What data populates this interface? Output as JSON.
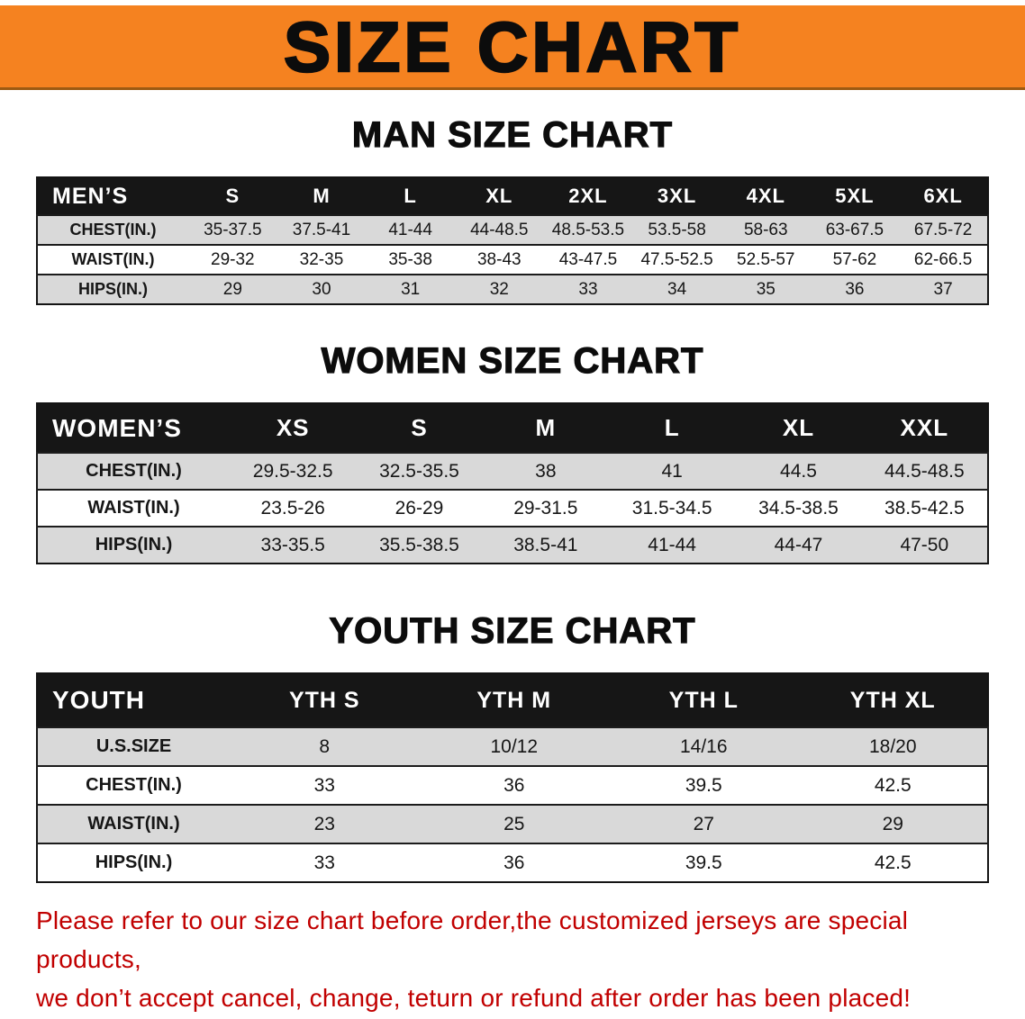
{
  "banner": {
    "title": "SIZE CHART"
  },
  "colors": {
    "banner_bg": "#f58220",
    "table_header_bg": "#161616",
    "row_alt_bg": "#d9d9d9",
    "disclaimer_color": "#c10000",
    "title_color": "#0c0c0c"
  },
  "chart_data": [
    {
      "type": "table",
      "title": "MAN SIZE CHART",
      "columns": [
        "MEN’S",
        "S",
        "M",
        "L",
        "XL",
        "2XL",
        "3XL",
        "4XL",
        "5XL",
        "6XL"
      ],
      "rows": [
        [
          "CHEST(IN.)",
          "35-37.5",
          "37.5-41",
          "41-44",
          "44-48.5",
          "48.5-53.5",
          "53.5-58",
          "58-63",
          "63-67.5",
          "67.5-72"
        ],
        [
          "WAIST(IN.)",
          "29-32",
          "32-35",
          "35-38",
          "38-43",
          "43-47.5",
          "47.5-52.5",
          "52.5-57",
          "57-62",
          "62-66.5"
        ],
        [
          "HIPS(IN.)",
          "29",
          "30",
          "31",
          "32",
          "33",
          "34",
          "35",
          "36",
          "37"
        ]
      ]
    },
    {
      "type": "table",
      "title": "WOMEN SIZE CHART",
      "columns": [
        "WOMEN’S",
        "XS",
        "S",
        "M",
        "L",
        "XL",
        "XXL"
      ],
      "rows": [
        [
          "CHEST(IN.)",
          "29.5-32.5",
          "32.5-35.5",
          "38",
          "41",
          "44.5",
          "44.5-48.5"
        ],
        [
          "WAIST(IN.)",
          "23.5-26",
          "26-29",
          "29-31.5",
          "31.5-34.5",
          "34.5-38.5",
          "38.5-42.5"
        ],
        [
          "HIPS(IN.)",
          "33-35.5",
          "35.5-38.5",
          "38.5-41",
          "41-44",
          "44-47",
          "47-50"
        ]
      ]
    },
    {
      "type": "table",
      "title": "YOUTH SIZE CHART",
      "columns": [
        "YOUTH",
        "YTH S",
        "YTH M",
        "YTH L",
        "YTH XL"
      ],
      "rows": [
        [
          "U.S.SIZE",
          "8",
          "10/12",
          "14/16",
          "18/20"
        ],
        [
          "CHEST(IN.)",
          "33",
          "36",
          "39.5",
          "42.5"
        ],
        [
          "WAIST(IN.)",
          "23",
          "25",
          "27",
          "29"
        ],
        [
          "HIPS(IN.)",
          "33",
          "36",
          "39.5",
          "42.5"
        ]
      ]
    }
  ],
  "disclaimer": {
    "line1": "Please refer to our size chart before order,the customized jerseys are special products,",
    "line2": "we don’t accept cancel, change, teturn or refund after order has been placed!"
  }
}
